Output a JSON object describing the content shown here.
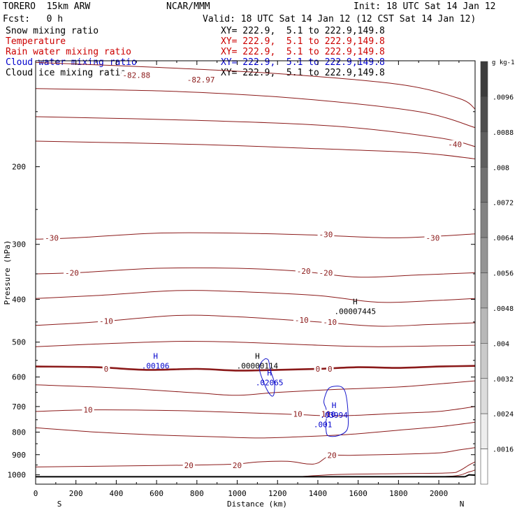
{
  "header": {
    "model": "TORERO  15km ARW",
    "org": "NCAR/MMM",
    "init": "Init: 18 UTC Sat 14 Jan 12",
    "fcst": "Fcst:   0 h",
    "valid": "Valid: 18 UTC Sat 14 Jan 12 (12 CST Sat 14 Jan 12)"
  },
  "fields": [
    {
      "name": "Snow mixing ratio",
      "xy": "XY= 222.9,  5.1 to 222.9,149.8",
      "color": "#000000"
    },
    {
      "name": "Temperature",
      "xy": "XY= 222.9,  5.1 to 222.9,149.8",
      "color": "#cc0000"
    },
    {
      "name": "Rain water mixing ratio",
      "xy": "XY= 222.9,  5.1 to 222.9,149.8",
      "color": "#cc0000"
    },
    {
      "name": "Cloud water mixing ratio",
      "xy": "XY= 222.9,  5.1 to 222.9,149.8",
      "color": "#0000cc"
    },
    {
      "name": "Cloud ice mixing ratio",
      "xy": "XY= 222.9,  5.1 to 222.9,149.8",
      "color": "#000000"
    }
  ],
  "chart_data": {
    "type": "cross-section",
    "xlabel": "Distance (km)",
    "ylabel": "Pressure (hPa)",
    "xlim": [
      0,
      2180
    ],
    "ylim": [
      1050,
      115
    ],
    "yscale": "log",
    "x_ticks": [
      0,
      200,
      400,
      600,
      800,
      1000,
      1200,
      1400,
      1600,
      1800,
      2000
    ],
    "y_ticks": [
      200,
      300,
      400,
      500,
      600,
      700,
      800,
      900,
      1000
    ],
    "x_end_labels": {
      "left": "S",
      "right": "N"
    },
    "colorbar": {
      "unit": "g kg-1",
      "labels": [
        ".0096",
        ".0088",
        ".008",
        ".0072",
        ".0064",
        ".0056",
        ".0048",
        ".004",
        ".0032",
        ".0024",
        ".0016"
      ]
    },
    "temperature_contours": [
      {
        "label": "-40",
        "points": [
          [
            0,
            116
          ],
          [
            600,
            119
          ],
          [
            1200,
            123
          ],
          [
            1800,
            130
          ],
          [
            2100,
            140
          ],
          [
            2180,
            148
          ]
        ]
      },
      {
        "label": "-40",
        "points": [
          [
            0,
            133
          ],
          [
            700,
            135
          ],
          [
            1300,
            140
          ],
          [
            1900,
            150
          ],
          [
            2180,
            163
          ]
        ]
      },
      {
        "label": "-40",
        "points": [
          [
            0,
            154
          ],
          [
            800,
            157
          ],
          [
            1500,
            162
          ],
          [
            2000,
            172
          ],
          [
            2180,
            180
          ]
        ]
      },
      {
        "label": "-40",
        "points": [
          [
            0,
            175
          ],
          [
            800,
            178
          ],
          [
            1400,
            182
          ],
          [
            1900,
            186
          ],
          [
            2180,
            192
          ]
        ]
      },
      {
        "label": "-30",
        "points": [
          [
            0,
            292
          ],
          [
            200,
            290
          ],
          [
            600,
            283
          ],
          [
            1000,
            283
          ],
          [
            1400,
            286
          ],
          [
            1800,
            290
          ],
          [
            2180,
            284
          ]
        ]
      },
      {
        "label": "-20",
        "points": [
          [
            0,
            350
          ],
          [
            200,
            348
          ],
          [
            600,
            340
          ],
          [
            1000,
            340
          ],
          [
            1300,
            345
          ],
          [
            1600,
            356
          ],
          [
            1900,
            352
          ],
          [
            2180,
            348
          ]
        ]
      },
      {
        "label": "-20",
        "points": [
          [
            0,
            398
          ],
          [
            300,
            392
          ],
          [
            700,
            382
          ],
          [
            1000,
            384
          ],
          [
            1400,
            392
          ],
          [
            1700,
            406
          ],
          [
            2000,
            402
          ],
          [
            2180,
            398
          ]
        ]
      },
      {
        "label": "-10",
        "points": [
          [
            0,
            458
          ],
          [
            300,
            450
          ],
          [
            700,
            435
          ],
          [
            1000,
            438
          ],
          [
            1400,
            450
          ],
          [
            1700,
            460
          ],
          [
            1950,
            456
          ],
          [
            2180,
            452
          ]
        ]
      },
      {
        "label": "-10",
        "points": [
          [
            0,
            512
          ],
          [
            300,
            505
          ],
          [
            700,
            498
          ],
          [
            1000,
            500
          ],
          [
            1400,
            508
          ],
          [
            1700,
            512
          ],
          [
            2180,
            508
          ]
        ]
      },
      {
        "label": "0",
        "bold": true,
        "points": [
          [
            0,
            568
          ],
          [
            300,
            570
          ],
          [
            550,
            578
          ],
          [
            800,
            575
          ],
          [
            1000,
            580
          ],
          [
            1200,
            578
          ],
          [
            1400,
            575
          ],
          [
            1600,
            570
          ],
          [
            1800,
            572
          ],
          [
            2000,
            568
          ],
          [
            2180,
            566
          ]
        ]
      },
      {
        "label": "0",
        "points": [
          [
            0,
            625
          ],
          [
            400,
            635
          ],
          [
            800,
            652
          ],
          [
            1000,
            660
          ],
          [
            1200,
            650
          ],
          [
            1500,
            640
          ],
          [
            1800,
            632
          ],
          [
            2000,
            622
          ],
          [
            2180,
            612
          ]
        ]
      },
      {
        "label": "10",
        "points": [
          [
            0,
            718
          ],
          [
            300,
            712
          ],
          [
            700,
            715
          ],
          [
            1000,
            722
          ],
          [
            1300,
            730
          ],
          [
            1500,
            735
          ],
          [
            1800,
            725
          ],
          [
            2000,
            718
          ],
          [
            2180,
            700
          ]
        ]
      },
      {
        "label": "10",
        "points": [
          [
            0,
            782
          ],
          [
            300,
            800
          ],
          [
            600,
            812
          ],
          [
            900,
            820
          ],
          [
            1100,
            825
          ],
          [
            1300,
            820
          ],
          [
            1550,
            810
          ],
          [
            1800,
            792
          ],
          [
            2000,
            778
          ],
          [
            2180,
            760
          ]
        ]
      },
      {
        "label": "20",
        "points": [
          [
            0,
            960
          ],
          [
            400,
            955
          ],
          [
            800,
            950
          ],
          [
            1000,
            945
          ],
          [
            1100,
            935
          ],
          [
            1250,
            932
          ],
          [
            1350,
            945
          ],
          [
            1400,
            940
          ],
          [
            1460,
            905
          ],
          [
            1560,
            903
          ],
          [
            1800,
            898
          ],
          [
            2000,
            892
          ],
          [
            2100,
            878
          ],
          [
            2180,
            868
          ]
        ]
      },
      {
        "label": "20",
        "points": [
          [
            1300,
            1010
          ],
          [
            1500,
            998
          ],
          [
            1800,
            994
          ],
          [
            2050,
            990
          ],
          [
            2100,
            980
          ],
          [
            2150,
            950
          ],
          [
            2180,
            935
          ]
        ]
      },
      {
        "label": "30",
        "points": [
          [
            1700,
            1010
          ],
          [
            2050,
            1008
          ],
          [
            2150,
            985
          ],
          [
            2180,
            975
          ]
        ]
      }
    ],
    "temperature_labels": [
      {
        "text": "-82.88",
        "x": 500,
        "y": 124
      },
      {
        "text": "-82.97",
        "x": 820,
        "y": 127
      },
      {
        "text": "-40",
        "x": 2080,
        "y": 178
      },
      {
        "text": "-30",
        "x": 80,
        "y": 290
      },
      {
        "text": "-30",
        "x": 1440,
        "y": 285
      },
      {
        "text": "-30",
        "x": 1970,
        "y": 290
      },
      {
        "text": "-20",
        "x": 180,
        "y": 348
      },
      {
        "text": "-20",
        "x": 1330,
        "y": 345
      },
      {
        "text": "-20",
        "x": 1440,
        "y": 348
      },
      {
        "text": "-10",
        "x": 350,
        "y": 448
      },
      {
        "text": "-10",
        "x": 1320,
        "y": 445
      },
      {
        "text": "-10",
        "x": 1460,
        "y": 450
      },
      {
        "text": "0",
        "x": 350,
        "y": 575
      },
      {
        "text": "0",
        "x": 1400,
        "y": 575
      },
      {
        "text": "0",
        "x": 1460,
        "y": 575
      },
      {
        "text": "10",
        "x": 260,
        "y": 712
      },
      {
        "text": "10",
        "x": 1300,
        "y": 728
      },
      {
        "text": "10",
        "x": 1440,
        "y": 728
      },
      {
        "text": "20",
        "x": 760,
        "y": 952
      },
      {
        "text": "20",
        "x": 1000,
        "y": 952
      },
      {
        "text": "20",
        "x": 1470,
        "y": 902
      }
    ],
    "cloud_water_contours": [
      {
        "label": ".001",
        "points": [
          [
            1440,
            705
          ],
          [
            1430,
            680
          ],
          [
            1450,
            640
          ],
          [
            1480,
            630
          ],
          [
            1520,
            633
          ],
          [
            1540,
            660
          ],
          [
            1550,
            730
          ],
          [
            1545,
            790
          ],
          [
            1500,
            815
          ],
          [
            1450,
            815
          ],
          [
            1440,
            785
          ],
          [
            1440,
            760
          ],
          [
            1445,
            730
          ],
          [
            1440,
            705
          ]
        ]
      },
      {
        "label": "",
        "points": [
          [
            1140,
            545
          ],
          [
            1120,
            555
          ],
          [
            1110,
            575
          ],
          [
            1130,
            615
          ],
          [
            1160,
            655
          ],
          [
            1180,
            660
          ],
          [
            1185,
            620
          ],
          [
            1165,
            580
          ],
          [
            1155,
            550
          ],
          [
            1140,
            545
          ]
        ]
      }
    ],
    "markers": [
      {
        "kind": "H",
        "value": ".00106",
        "x": 595,
        "y": 545,
        "color": "#0000cc"
      },
      {
        "kind": "H",
        "value": ".00000114",
        "x": 1100,
        "y": 545,
        "color": "#000000"
      },
      {
        "kind": "H",
        "value": ".02065",
        "x": 1160,
        "y": 595,
        "color": "#0000cc"
      },
      {
        "kind": "H",
        "value": ".03994",
        "x": 1480,
        "y": 705,
        "color": "#0000cc"
      },
      {
        "kind": "H",
        "value": ".00007445",
        "x": 1585,
        "y": 410,
        "color": "#000000"
      }
    ],
    "extra_labels": [
      {
        "text": "10",
        "x": 1465,
        "y": 740,
        "color": "#0000cc"
      },
      {
        "text": ".001",
        "x": 1425,
        "y": 780,
        "color": "#0000cc"
      }
    ]
  }
}
